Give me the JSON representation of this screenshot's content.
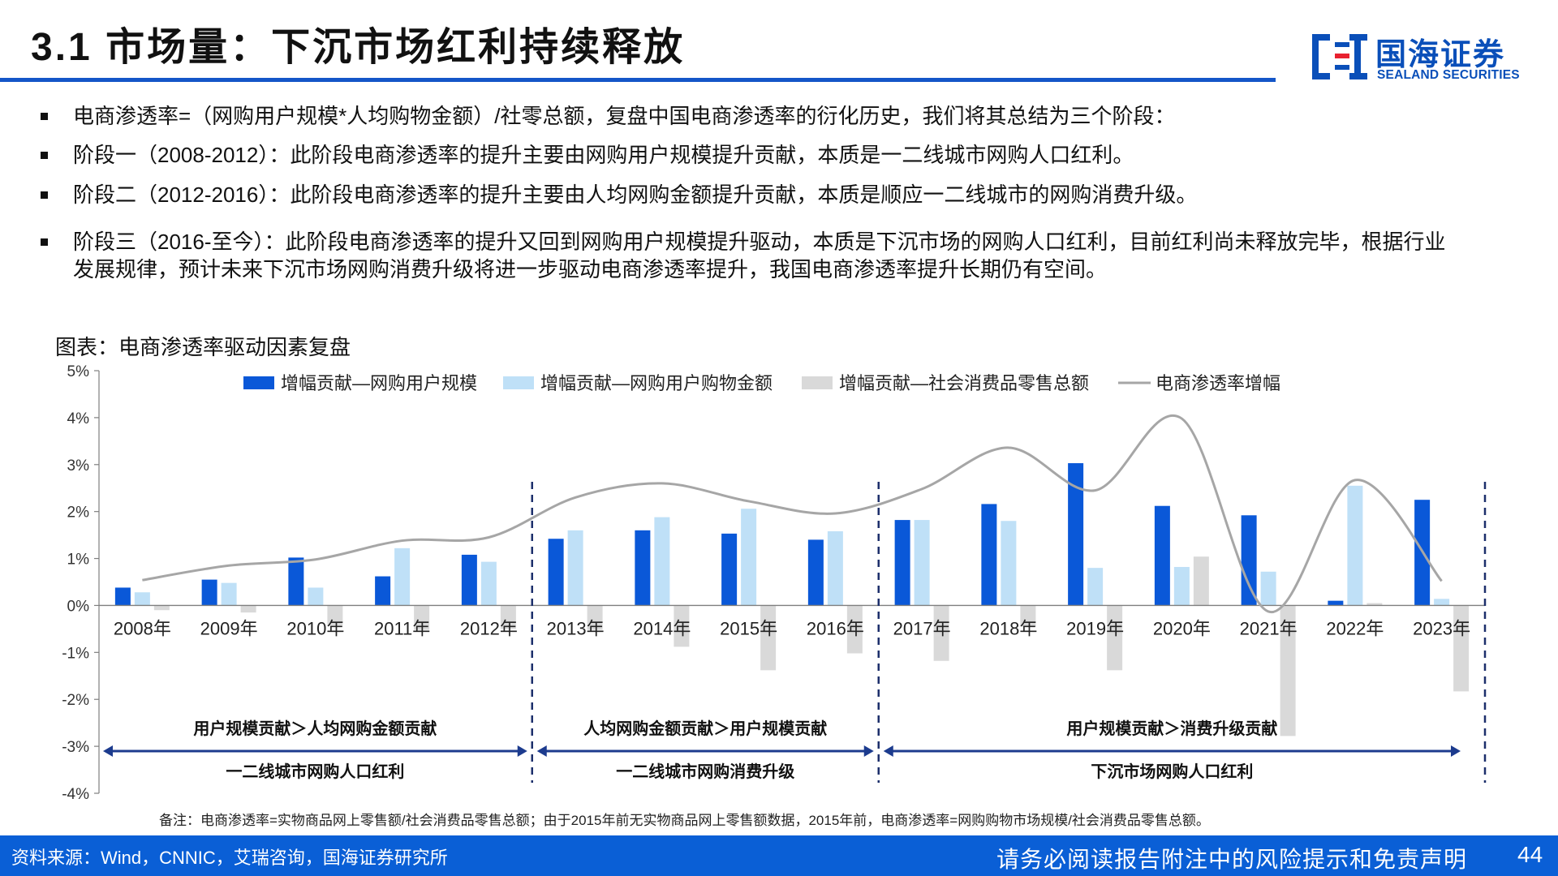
{
  "header": {
    "title": "3.1 市场量：下沉市场红利持续释放"
  },
  "logo": {
    "cn": "国海证券",
    "en": "SEALAND SECURITIES",
    "icon": "sealand-logo-icon",
    "color": "#0a4fb9"
  },
  "bullets": [
    {
      "text": "电商渗透率=（网购用户规模*人均购物金额）/社零总额，复盘中国电商渗透率的衍化历史，我们将其总结为三个阶段："
    },
    {
      "text": "阶段一（2008-2012）：此阶段电商渗透率的提升主要由网购用户规模提升贡献，本质是一二线城市网购人口红利。"
    },
    {
      "text": "阶段二（2012-2016）：此阶段电商渗透率的提升主要由人均网购金额提升贡献，本质是顺应一二线城市的网购消费升级。"
    },
    {
      "text": "阶段三（2016-至今）：此阶段电商渗透率的提升又回到网购用户规模提升驱动，本质是下沉市场的网购人口红利，目前红利尚未释放完毕，根据行业发展规律，预计未来下沉市场网购消费升级将进一步驱动电商渗透率提升，我国电商渗透率提升长期仍有空间。"
    }
  ],
  "chart_caption": "图表：电商渗透率驱动因素复盘",
  "chart_data": {
    "type": "bar",
    "categories": [
      "2008年",
      "2009年",
      "2010年",
      "2011年",
      "2012年",
      "2013年",
      "2014年",
      "2015年",
      "2016年",
      "2017年",
      "2018年",
      "2019年",
      "2020年",
      "2021年",
      "2022年",
      "2023年"
    ],
    "series": [
      {
        "name": "增幅贡献—网购用户规模",
        "kind": "bar",
        "color": "#0a58d8",
        "values": [
          0.38,
          0.55,
          1.02,
          0.62,
          1.08,
          1.42,
          1.6,
          1.53,
          1.4,
          1.82,
          2.16,
          3.03,
          2.12,
          1.92,
          0.1,
          2.25
        ]
      },
      {
        "name": "增幅贡献—网购用户购物金额",
        "kind": "bar",
        "color": "#bfe0f7",
        "values": [
          0.28,
          0.48,
          0.38,
          1.22,
          0.93,
          1.6,
          1.88,
          2.06,
          1.58,
          1.82,
          1.8,
          0.8,
          0.82,
          0.72,
          2.55,
          0.14
        ]
      },
      {
        "name": "增幅贡献—社会消费品零售总额",
        "kind": "bar",
        "color": "#d9d9d9",
        "values": [
          -0.1,
          -0.15,
          -0.42,
          -0.52,
          -0.5,
          -0.52,
          -0.88,
          -1.38,
          -1.02,
          -1.18,
          -0.45,
          -1.38,
          1.04,
          -2.78,
          0.05,
          -1.83
        ]
      },
      {
        "name": "电商渗透率增幅",
        "kind": "line",
        "color": "#a6a6a6",
        "values": [
          0.54,
          0.85,
          0.98,
          1.38,
          1.45,
          2.3,
          2.6,
          2.22,
          1.96,
          2.48,
          3.36,
          2.45,
          3.98,
          -0.13,
          2.67,
          0.52
        ]
      }
    ],
    "ylim": [
      -4,
      5
    ],
    "yticks": [
      "5%",
      "4%",
      "3%",
      "2%",
      "1%",
      "0%",
      "-1%",
      "-2%",
      "-3%",
      "-4%"
    ],
    "grid": false,
    "legend_position": "top",
    "stages": [
      {
        "top_label": "用户规模贡献＞人均网购金额贡献",
        "bottom_label": "一二线城市网购人口红利"
      },
      {
        "top_label": "人均网购金额贡献＞用户规模贡献",
        "bottom_label": "一二线城市网购消费升级"
      },
      {
        "top_label": "用户规模贡献＞消费升级贡献",
        "bottom_label": "下沉市场网购人口红利"
      }
    ]
  },
  "note": "备注：电商渗透率=实物商品网上零售额/社会消费品零售总额；由于2015年前无实物商品网上零售额数据，2015年前，电商渗透率=网购购物市场规模/社会消费品零售总额。",
  "footer": {
    "source": "资料来源：Wind，CNNIC，艾瑞咨询，国海证券研究所",
    "disclaimer": "请务必阅读报告附注中的风险提示和免责声明",
    "page": "44",
    "color": "#0a5fd6"
  }
}
